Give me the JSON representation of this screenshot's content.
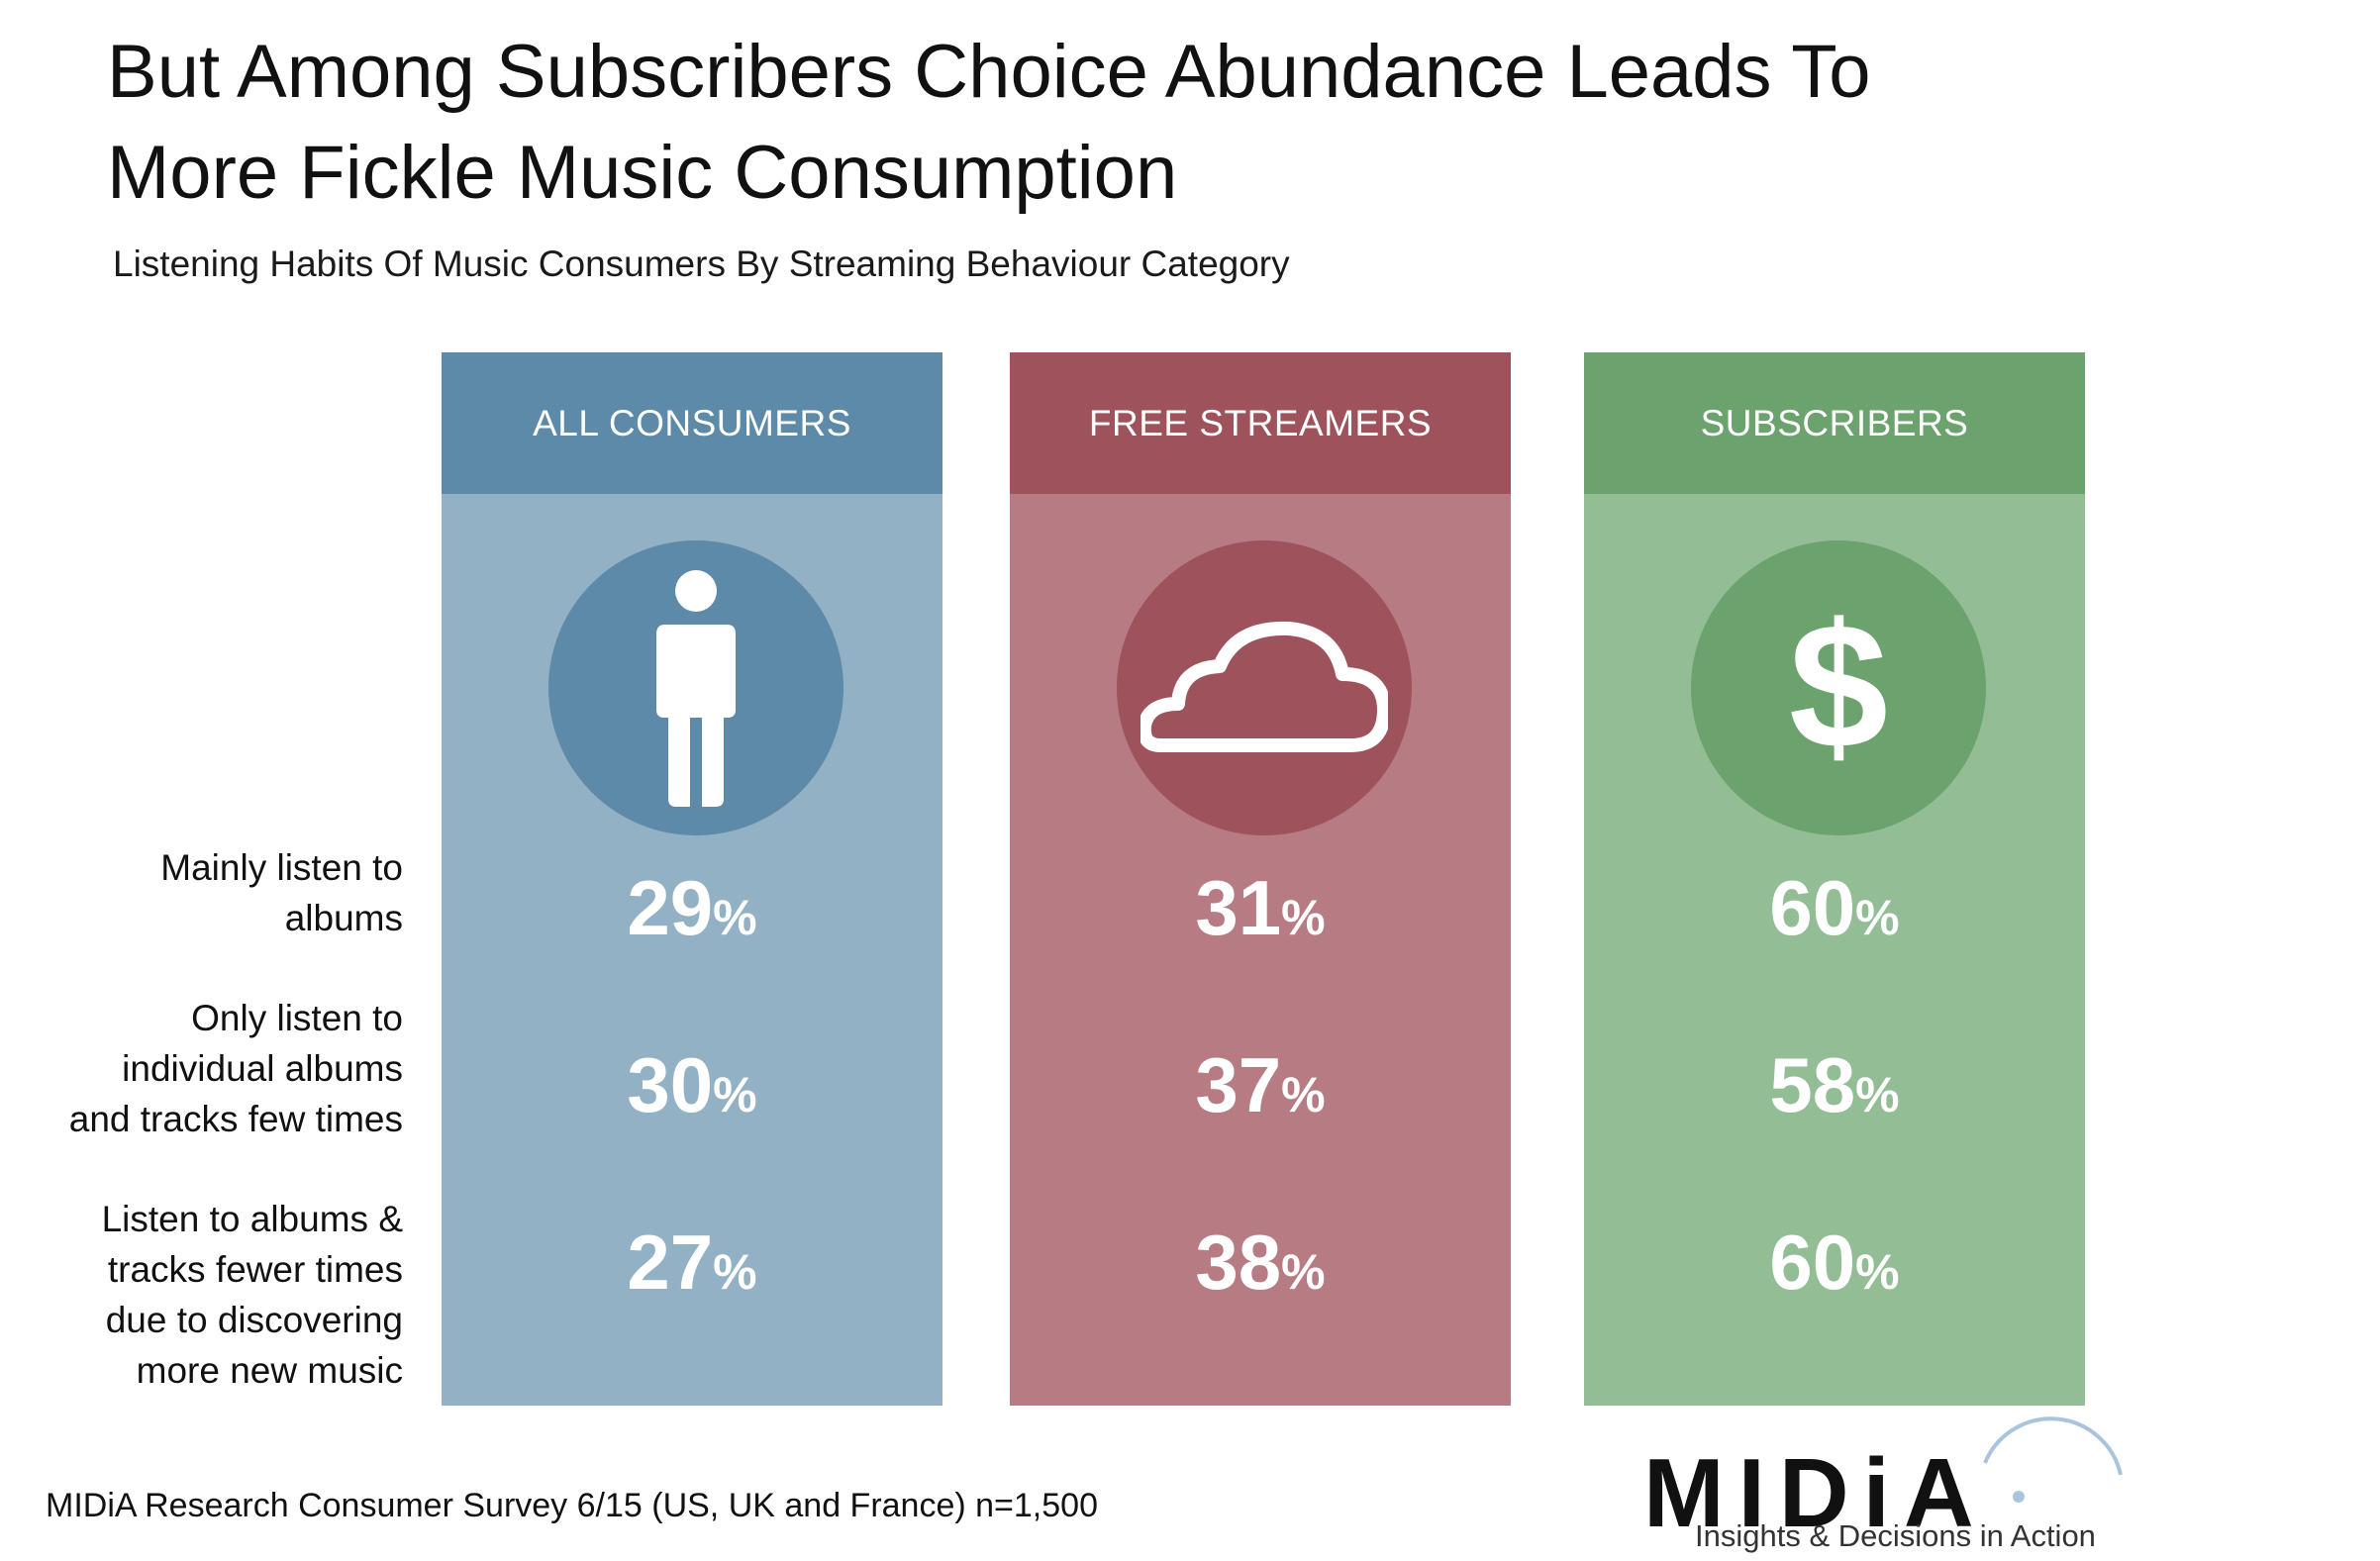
{
  "title_lines": [
    "But Among Subscribers Choice Abundance Leads To",
    "More Fickle Music Consumption"
  ],
  "subtitle": "Listening Habits Of Music Consumers By Streaming Behaviour Category",
  "row_labels": [
    [
      "Mainly listen to",
      "albums"
    ],
    [
      "Only listen to",
      "individual albums",
      "and tracks few times"
    ],
    [
      "Listen to albums &",
      "tracks fewer times",
      "due to discovering",
      "more new music"
    ]
  ],
  "panels": [
    {
      "header": "ALL CONSUMERS",
      "icon": "person-icon",
      "color_header": "#5d8aa8",
      "color_body": "#93b1c4",
      "color_circle": "#5d8aa8",
      "values": [
        "29",
        "30",
        "27"
      ]
    },
    {
      "header": "FREE STREAMERS",
      "icon": "cloud-icon",
      "color_header": "#9e525b",
      "color_body": "#b77c83",
      "color_circle": "#9e525b",
      "values": [
        "31",
        "37",
        "38"
      ]
    },
    {
      "header": "SUBSCRIBERS",
      "icon": "dollar-icon",
      "color_header": "#6ba26e",
      "color_body": "#93bd94",
      "color_circle": "#6ba26e",
      "values": [
        "60",
        "58",
        "60"
      ]
    }
  ],
  "percent_sign": "%",
  "dollar_glyph": "$",
  "source": "MIDiA Research Consumer Survey 6/15 (US, UK and France) n=1,500",
  "logo": {
    "word": "MIDiA",
    "tagline": "Insights & Decisions in Action",
    "accent": "#a9c4dc"
  },
  "chart_data": {
    "type": "table",
    "title": "But Among Subscribers Choice Abundance Leads To More Fickle Music Consumption",
    "subtitle": "Listening Habits Of Music Consumers By Streaming Behaviour Category",
    "categories": [
      "Mainly listen to albums",
      "Only listen to individual albums and tracks few times",
      "Listen to albums & tracks fewer times due to discovering more new music"
    ],
    "series": [
      {
        "name": "ALL CONSUMERS",
        "values": [
          29,
          30,
          27
        ]
      },
      {
        "name": "FREE STREAMERS",
        "values": [
          31,
          37,
          38
        ]
      },
      {
        "name": "SUBSCRIBERS",
        "values": [
          60,
          58,
          60
        ]
      }
    ],
    "unit": "%"
  }
}
